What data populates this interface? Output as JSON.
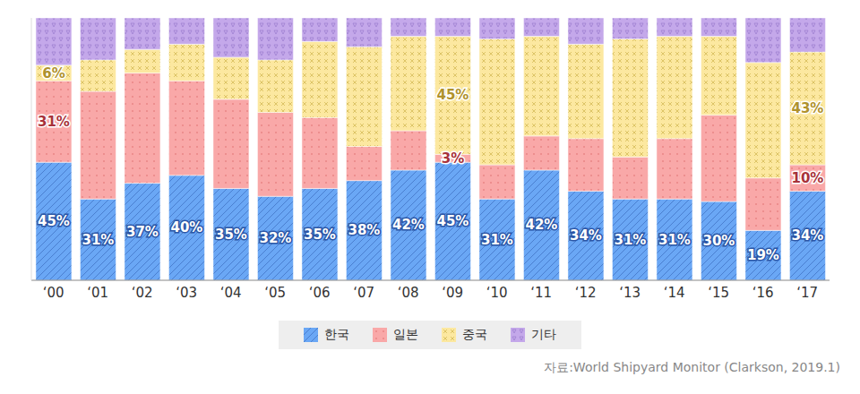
{
  "chart_data": {
    "type": "bar",
    "stacked": true,
    "data_labels": true,
    "tick_labels": "x",
    "ylim": [
      0,
      100
    ],
    "categories": [
      "‘00",
      "‘01",
      "‘02",
      "‘03",
      "‘04",
      "‘05",
      "‘06",
      "‘07",
      "‘08",
      "‘09",
      "‘10",
      "‘11",
      "‘12",
      "‘13",
      "‘14",
      "‘15",
      "‘16",
      "‘17"
    ],
    "series": [
      {
        "name": "한국",
        "color": "#6aa7f5",
        "values": [
          45,
          31,
          37,
          40,
          35,
          32,
          35,
          38,
          42,
          45,
          31,
          42,
          34,
          31,
          31,
          30,
          19,
          34
        ],
        "value_labels": [
          "45%",
          "31%",
          "37%",
          "40%",
          "35%",
          "32%",
          "35%",
          "38%",
          "42%",
          "45%",
          "31%",
          "42%",
          "34%",
          "31%",
          "31%",
          "30%",
          "19%",
          "34%"
        ]
      },
      {
        "name": "일본",
        "color": "#f9a8a8",
        "values": [
          31,
          41,
          42,
          36,
          34,
          32,
          27,
          13,
          15,
          3,
          13,
          13,
          20,
          16,
          23,
          33,
          20,
          10
        ],
        "value_labels": [
          "31%",
          null,
          null,
          null,
          null,
          null,
          null,
          null,
          null,
          "3%",
          null,
          null,
          null,
          null,
          null,
          null,
          null,
          "10%"
        ]
      },
      {
        "name": "중국",
        "color": "#fce8a0",
        "values": [
          6,
          12,
          9,
          14,
          16,
          20,
          29,
          38,
          36,
          45,
          48,
          38,
          36,
          45,
          39,
          30,
          44,
          43
        ],
        "value_labels": [
          "6%",
          null,
          null,
          null,
          null,
          null,
          null,
          null,
          null,
          "45%",
          null,
          null,
          null,
          null,
          null,
          null,
          null,
          "43%"
        ]
      },
      {
        "name": "기타",
        "color": "#c4a8ea",
        "values": [
          18,
          16,
          12,
          10,
          15,
          16,
          9,
          11,
          7,
          7,
          8,
          7,
          10,
          8,
          7,
          7,
          17,
          13
        ]
      }
    ],
    "source": "자료:World Shipyard Monitor (Clarkson, 2019.1)",
    "legend": "bottom"
  }
}
